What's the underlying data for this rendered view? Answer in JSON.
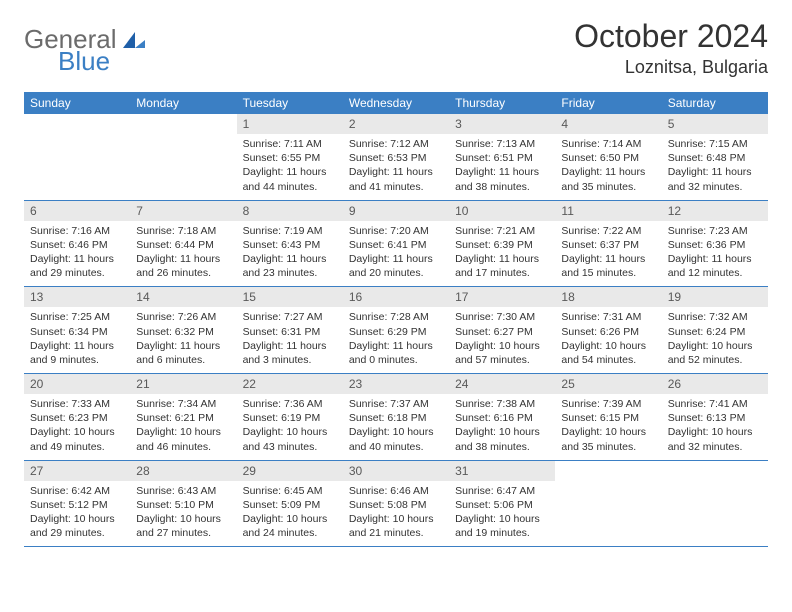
{
  "brand": {
    "part1": "General",
    "part2": "Blue"
  },
  "title": "October 2024",
  "location": "Loznitsa, Bulgaria",
  "colors": {
    "header_bg": "#3b7fc4",
    "header_text": "#ffffff",
    "daynum_bg": "#e9e9e9",
    "daynum_text": "#595959",
    "body_text": "#333333",
    "rule": "#3b7fc4",
    "page_bg": "#ffffff",
    "logo_gray": "#6b6b6b",
    "logo_blue": "#3b7fc4"
  },
  "typography": {
    "title_fontsize": 32,
    "location_fontsize": 18,
    "weekday_fontsize": 12,
    "daynum_fontsize": 12,
    "cell_fontsize": 10.5,
    "font_family": "Arial"
  },
  "layout": {
    "columns": 7,
    "rows": 5,
    "cell_min_height": 84
  },
  "weekdays": [
    "Sunday",
    "Monday",
    "Tuesday",
    "Wednesday",
    "Thursday",
    "Friday",
    "Saturday"
  ],
  "weeks": [
    [
      {
        "day": "",
        "sunrise": "",
        "sunset": "",
        "daylight1": "",
        "daylight2": ""
      },
      {
        "day": "",
        "sunrise": "",
        "sunset": "",
        "daylight1": "",
        "daylight2": ""
      },
      {
        "day": "1",
        "sunrise": "Sunrise: 7:11 AM",
        "sunset": "Sunset: 6:55 PM",
        "daylight1": "Daylight: 11 hours",
        "daylight2": "and 44 minutes."
      },
      {
        "day": "2",
        "sunrise": "Sunrise: 7:12 AM",
        "sunset": "Sunset: 6:53 PM",
        "daylight1": "Daylight: 11 hours",
        "daylight2": "and 41 minutes."
      },
      {
        "day": "3",
        "sunrise": "Sunrise: 7:13 AM",
        "sunset": "Sunset: 6:51 PM",
        "daylight1": "Daylight: 11 hours",
        "daylight2": "and 38 minutes."
      },
      {
        "day": "4",
        "sunrise": "Sunrise: 7:14 AM",
        "sunset": "Sunset: 6:50 PM",
        "daylight1": "Daylight: 11 hours",
        "daylight2": "and 35 minutes."
      },
      {
        "day": "5",
        "sunrise": "Sunrise: 7:15 AM",
        "sunset": "Sunset: 6:48 PM",
        "daylight1": "Daylight: 11 hours",
        "daylight2": "and 32 minutes."
      }
    ],
    [
      {
        "day": "6",
        "sunrise": "Sunrise: 7:16 AM",
        "sunset": "Sunset: 6:46 PM",
        "daylight1": "Daylight: 11 hours",
        "daylight2": "and 29 minutes."
      },
      {
        "day": "7",
        "sunrise": "Sunrise: 7:18 AM",
        "sunset": "Sunset: 6:44 PM",
        "daylight1": "Daylight: 11 hours",
        "daylight2": "and 26 minutes."
      },
      {
        "day": "8",
        "sunrise": "Sunrise: 7:19 AM",
        "sunset": "Sunset: 6:43 PM",
        "daylight1": "Daylight: 11 hours",
        "daylight2": "and 23 minutes."
      },
      {
        "day": "9",
        "sunrise": "Sunrise: 7:20 AM",
        "sunset": "Sunset: 6:41 PM",
        "daylight1": "Daylight: 11 hours",
        "daylight2": "and 20 minutes."
      },
      {
        "day": "10",
        "sunrise": "Sunrise: 7:21 AM",
        "sunset": "Sunset: 6:39 PM",
        "daylight1": "Daylight: 11 hours",
        "daylight2": "and 17 minutes."
      },
      {
        "day": "11",
        "sunrise": "Sunrise: 7:22 AM",
        "sunset": "Sunset: 6:37 PM",
        "daylight1": "Daylight: 11 hours",
        "daylight2": "and 15 minutes."
      },
      {
        "day": "12",
        "sunrise": "Sunrise: 7:23 AM",
        "sunset": "Sunset: 6:36 PM",
        "daylight1": "Daylight: 11 hours",
        "daylight2": "and 12 minutes."
      }
    ],
    [
      {
        "day": "13",
        "sunrise": "Sunrise: 7:25 AM",
        "sunset": "Sunset: 6:34 PM",
        "daylight1": "Daylight: 11 hours",
        "daylight2": "and 9 minutes."
      },
      {
        "day": "14",
        "sunrise": "Sunrise: 7:26 AM",
        "sunset": "Sunset: 6:32 PM",
        "daylight1": "Daylight: 11 hours",
        "daylight2": "and 6 minutes."
      },
      {
        "day": "15",
        "sunrise": "Sunrise: 7:27 AM",
        "sunset": "Sunset: 6:31 PM",
        "daylight1": "Daylight: 11 hours",
        "daylight2": "and 3 minutes."
      },
      {
        "day": "16",
        "sunrise": "Sunrise: 7:28 AM",
        "sunset": "Sunset: 6:29 PM",
        "daylight1": "Daylight: 11 hours",
        "daylight2": "and 0 minutes."
      },
      {
        "day": "17",
        "sunrise": "Sunrise: 7:30 AM",
        "sunset": "Sunset: 6:27 PM",
        "daylight1": "Daylight: 10 hours",
        "daylight2": "and 57 minutes."
      },
      {
        "day": "18",
        "sunrise": "Sunrise: 7:31 AM",
        "sunset": "Sunset: 6:26 PM",
        "daylight1": "Daylight: 10 hours",
        "daylight2": "and 54 minutes."
      },
      {
        "day": "19",
        "sunrise": "Sunrise: 7:32 AM",
        "sunset": "Sunset: 6:24 PM",
        "daylight1": "Daylight: 10 hours",
        "daylight2": "and 52 minutes."
      }
    ],
    [
      {
        "day": "20",
        "sunrise": "Sunrise: 7:33 AM",
        "sunset": "Sunset: 6:23 PM",
        "daylight1": "Daylight: 10 hours",
        "daylight2": "and 49 minutes."
      },
      {
        "day": "21",
        "sunrise": "Sunrise: 7:34 AM",
        "sunset": "Sunset: 6:21 PM",
        "daylight1": "Daylight: 10 hours",
        "daylight2": "and 46 minutes."
      },
      {
        "day": "22",
        "sunrise": "Sunrise: 7:36 AM",
        "sunset": "Sunset: 6:19 PM",
        "daylight1": "Daylight: 10 hours",
        "daylight2": "and 43 minutes."
      },
      {
        "day": "23",
        "sunrise": "Sunrise: 7:37 AM",
        "sunset": "Sunset: 6:18 PM",
        "daylight1": "Daylight: 10 hours",
        "daylight2": "and 40 minutes."
      },
      {
        "day": "24",
        "sunrise": "Sunrise: 7:38 AM",
        "sunset": "Sunset: 6:16 PM",
        "daylight1": "Daylight: 10 hours",
        "daylight2": "and 38 minutes."
      },
      {
        "day": "25",
        "sunrise": "Sunrise: 7:39 AM",
        "sunset": "Sunset: 6:15 PM",
        "daylight1": "Daylight: 10 hours",
        "daylight2": "and 35 minutes."
      },
      {
        "day": "26",
        "sunrise": "Sunrise: 7:41 AM",
        "sunset": "Sunset: 6:13 PM",
        "daylight1": "Daylight: 10 hours",
        "daylight2": "and 32 minutes."
      }
    ],
    [
      {
        "day": "27",
        "sunrise": "Sunrise: 6:42 AM",
        "sunset": "Sunset: 5:12 PM",
        "daylight1": "Daylight: 10 hours",
        "daylight2": "and 29 minutes."
      },
      {
        "day": "28",
        "sunrise": "Sunrise: 6:43 AM",
        "sunset": "Sunset: 5:10 PM",
        "daylight1": "Daylight: 10 hours",
        "daylight2": "and 27 minutes."
      },
      {
        "day": "29",
        "sunrise": "Sunrise: 6:45 AM",
        "sunset": "Sunset: 5:09 PM",
        "daylight1": "Daylight: 10 hours",
        "daylight2": "and 24 minutes."
      },
      {
        "day": "30",
        "sunrise": "Sunrise: 6:46 AM",
        "sunset": "Sunset: 5:08 PM",
        "daylight1": "Daylight: 10 hours",
        "daylight2": "and 21 minutes."
      },
      {
        "day": "31",
        "sunrise": "Sunrise: 6:47 AM",
        "sunset": "Sunset: 5:06 PM",
        "daylight1": "Daylight: 10 hours",
        "daylight2": "and 19 minutes."
      },
      {
        "day": "",
        "sunrise": "",
        "sunset": "",
        "daylight1": "",
        "daylight2": ""
      },
      {
        "day": "",
        "sunrise": "",
        "sunset": "",
        "daylight1": "",
        "daylight2": ""
      }
    ]
  ]
}
